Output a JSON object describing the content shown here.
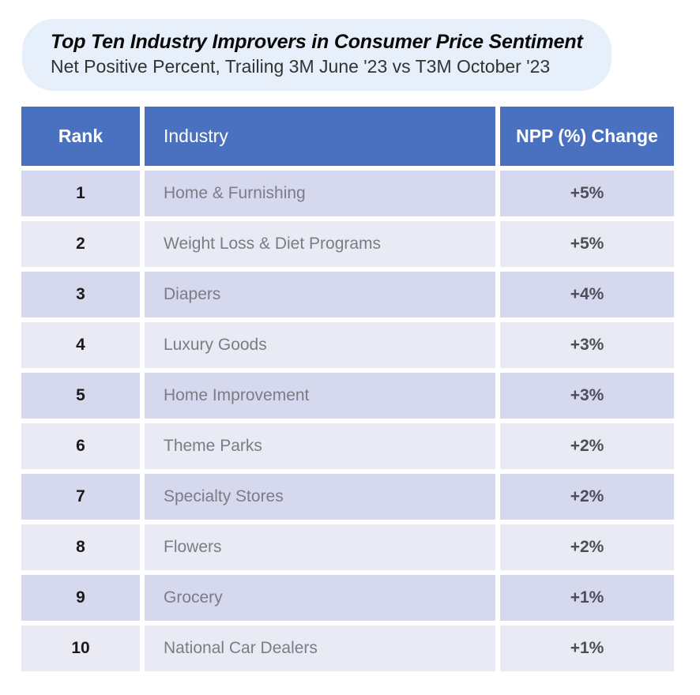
{
  "header": {
    "title": "Top Ten Industry Improvers in Consumer Price Sentiment",
    "subtitle": "Net Positive Percent, Trailing 3M June '23 vs T3M October '23"
  },
  "table": {
    "type": "table",
    "header_bg": "#4a71c0",
    "header_text_color": "#ffffff",
    "row_bg_odd": "#d6d9ed",
    "row_bg_even": "#e9eaf3",
    "rank_text_color": "#1a1a1a",
    "industry_text_color": "#7a7d86",
    "npp_text_color": "#4c4f57",
    "columns": [
      "Rank",
      "Industry",
      "NPP (%) Change"
    ],
    "rows": [
      {
        "rank": "1",
        "industry": "Home & Furnishing",
        "npp": "+5%"
      },
      {
        "rank": "2",
        "industry": "Weight Loss & Diet Programs",
        "npp": "+5%"
      },
      {
        "rank": "3",
        "industry": "Diapers",
        "npp": "+4%"
      },
      {
        "rank": "4",
        "industry": "Luxury Goods",
        "npp": "+3%"
      },
      {
        "rank": "5",
        "industry": "Home Improvement",
        "npp": "+3%"
      },
      {
        "rank": "6",
        "industry": "Theme Parks",
        "npp": "+2%"
      },
      {
        "rank": "7",
        "industry": "Specialty Stores",
        "npp": "+2%"
      },
      {
        "rank": "8",
        "industry": "Flowers",
        "npp": "+2%"
      },
      {
        "rank": "9",
        "industry": "Grocery",
        "npp": "+1%"
      },
      {
        "rank": "10",
        "industry": "National Car Dealers",
        "npp": "+1%"
      }
    ]
  }
}
